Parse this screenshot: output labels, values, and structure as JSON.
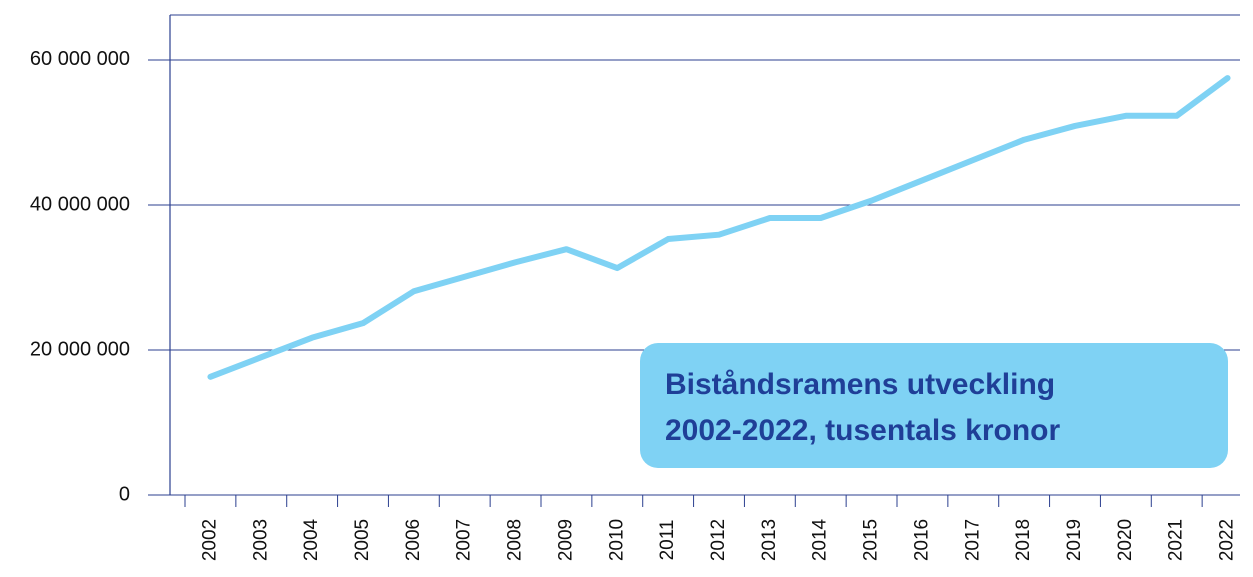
{
  "chart_data": {
    "type": "line",
    "title_lines": [
      "Biståndsramens utveckling",
      "2002-2022, tusentals kronor"
    ],
    "categories": [
      "2002",
      "2003",
      "2004",
      "2005",
      "2006",
      "2007",
      "2008",
      "2009",
      "2010",
      "2011",
      "2012",
      "2013",
      "2014",
      "2015",
      "2016",
      "2017",
      "2018",
      "2019",
      "2020",
      "2021",
      "2022"
    ],
    "series": [
      {
        "color": "#7fd2f4",
        "values": [
          16300000,
          19000000,
          21700000,
          23700000,
          28100000,
          30100000,
          32100000,
          33900000,
          31300000,
          35300000,
          35900000,
          38200000,
          38200000,
          40600000,
          43400000,
          46200000,
          49000000,
          50900000,
          52300000,
          52300000,
          57500000
        ]
      }
    ],
    "ylim": [
      0,
      66200000
    ],
    "yticks": [
      {
        "value": 0,
        "label": "0"
      },
      {
        "value": 20000000,
        "label": "20 000 000"
      },
      {
        "value": 40000000,
        "label": "40 000 000"
      },
      {
        "value": 60000000,
        "label": "60 000 000"
      }
    ],
    "grid": true
  }
}
